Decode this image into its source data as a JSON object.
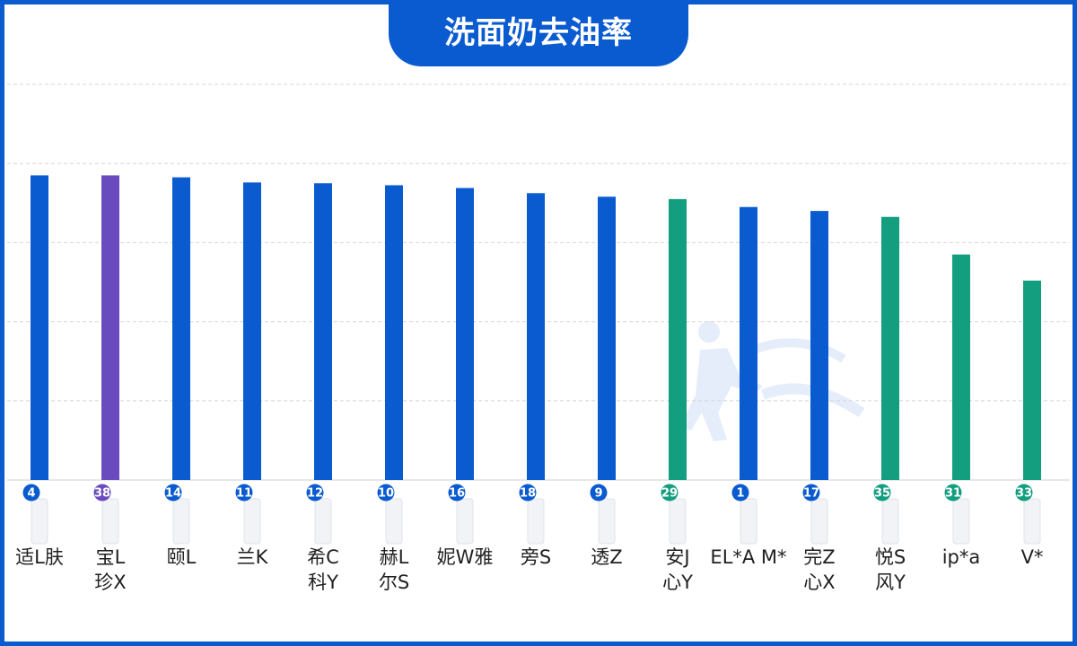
{
  "chart_data": {
    "type": "bar",
    "title": "洗面奶去油率",
    "ylim": [
      0,
      100
    ],
    "grid": true,
    "categories": [
      "适L肤",
      "宝L 珍X",
      "颐L",
      "兰K",
      "希C 科Y",
      "赫L 尔S",
      "妮W雅",
      "旁S",
      "透Z",
      "安J 心Y",
      "EL*A M*",
      "完Z 心X",
      "悦S 风Y",
      "ip*a",
      "V*"
    ],
    "label_lines": [
      [
        "适L肤"
      ],
      [
        "宝L",
        "珍X"
      ],
      [
        "颐L"
      ],
      [
        "兰K"
      ],
      [
        "希C",
        "科Y"
      ],
      [
        "赫L",
        "尔S"
      ],
      [
        "妮W雅"
      ],
      [
        "旁S"
      ],
      [
        "透Z"
      ],
      [
        "安J",
        "心Y"
      ],
      [
        "EL*A M*"
      ],
      [
        "完Z",
        "心X"
      ],
      [
        "悦S",
        "风Y"
      ],
      [
        "ip*a"
      ],
      [
        "V*"
      ]
    ],
    "badges": [
      "4",
      "38",
      "14",
      "11",
      "12",
      "10",
      "16",
      "18",
      "9",
      "29",
      "1",
      "17",
      "35",
      "31",
      "33"
    ],
    "values": [
      77,
      77,
      76.5,
      75.2,
      75,
      74.5,
      73.8,
      72.5,
      71.6,
      71,
      69,
      68,
      66.5,
      57,
      50.4
    ],
    "bar_colors": [
      "#0a5bd0",
      "#6a4bbf",
      "#0a5bd0",
      "#0a5bd0",
      "#0a5bd0",
      "#0a5bd0",
      "#0a5bd0",
      "#0a5bd0",
      "#0a5bd0",
      "#139e80",
      "#0a5bd0",
      "#0a5bd0",
      "#139e80",
      "#139e80",
      "#139e80"
    ],
    "badge_colors": [
      "#0a5bd0",
      "#6a4bbf",
      "#0a5bd0",
      "#0a5bd0",
      "#0a5bd0",
      "#0a5bd0",
      "#0a5bd0",
      "#0a5bd0",
      "#0a5bd0",
      "#139e80",
      "#0a5bd0",
      "#0a5bd0",
      "#139e80",
      "#139e80",
      "#139e80"
    ]
  },
  "colors": {
    "frame": "#0a5bd0",
    "grid": "#d6d6d6"
  },
  "watermark_icon": "runner-icon"
}
